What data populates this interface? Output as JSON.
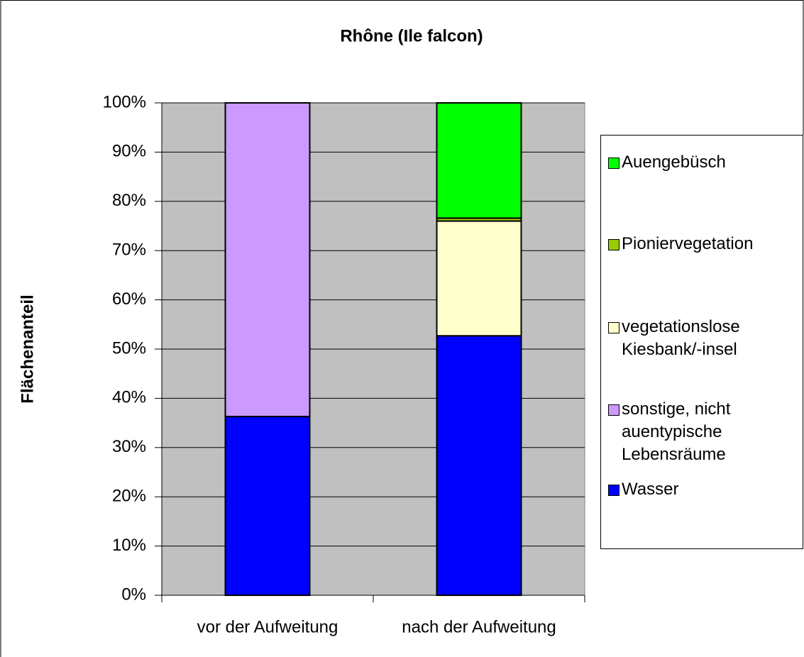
{
  "chart_data": {
    "type": "bar",
    "stacked": true,
    "title": "Rhône (Ile falcon)",
    "y_label": "Flächenanteil",
    "categories": [
      "vor der Aufweitung",
      "nach der Aufweitung"
    ],
    "series": [
      {
        "name": "Wasser",
        "color": "#0000ff",
        "values": [
          36.3,
          52.7
        ]
      },
      {
        "name": "sonstige, nicht auentypische Lebensräume",
        "color": "#cc99ff",
        "values": [
          63.7,
          0
        ]
      },
      {
        "name": "vegetationslose Kiesbank/-insel",
        "color": "#ffffcc",
        "values": [
          0,
          23.3
        ]
      },
      {
        "name": "Pioniervegetation",
        "color": "#99cc00",
        "values": [
          0,
          0.6
        ]
      },
      {
        "name": "Auengebüsch",
        "color": "#00ff00",
        "values": [
          0,
          23.4
        ]
      }
    ],
    "ylim": [
      0,
      100
    ],
    "yticks": [
      {
        "value": 0,
        "label": "0%"
      },
      {
        "value": 10,
        "label": "10%"
      },
      {
        "value": 20,
        "label": "20%"
      },
      {
        "value": 30,
        "label": "30%"
      },
      {
        "value": 40,
        "label": "40%"
      },
      {
        "value": 50,
        "label": "50%"
      },
      {
        "value": 60,
        "label": "60%"
      },
      {
        "value": 70,
        "label": "70%"
      },
      {
        "value": 80,
        "label": "80%"
      },
      {
        "value": 90,
        "label": "90%"
      },
      {
        "value": 100,
        "label": "100%"
      }
    ],
    "grid": true,
    "legend": "right"
  }
}
